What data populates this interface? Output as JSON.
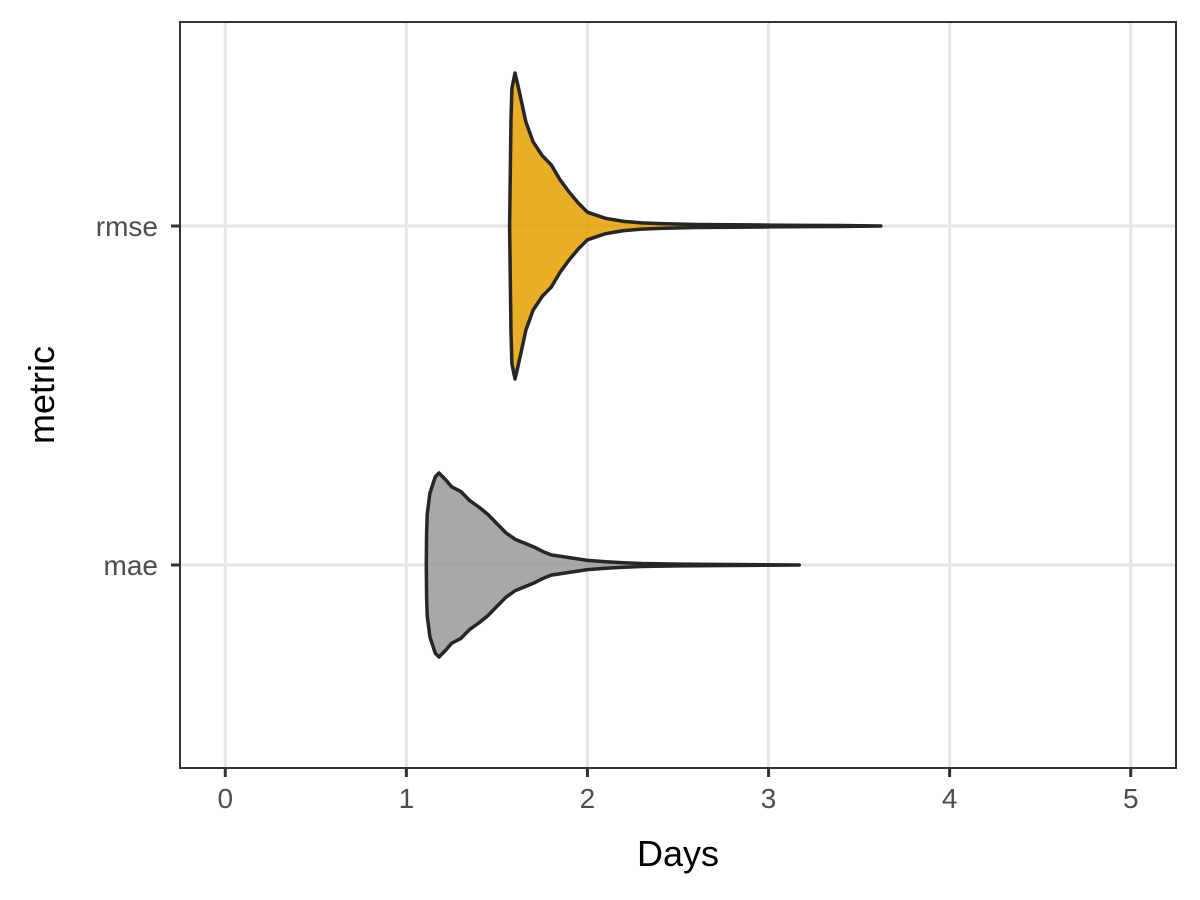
{
  "chart_data": {
    "type": "violin",
    "orientation": "horizontal",
    "xlabel": "Days",
    "ylabel": "metric",
    "xlim": [
      -0.25,
      5.25
    ],
    "x_ticks": [
      0,
      1,
      2,
      3,
      4,
      5
    ],
    "categories": [
      "mae",
      "rmse"
    ],
    "grid": true,
    "legend": "none",
    "series": [
      {
        "category": "rmse",
        "color": "#E69F00",
        "min": 1.57,
        "max": 3.62,
        "density_profile": [
          [
            1.57,
            0.0
          ],
          [
            1.575,
            0.45
          ],
          [
            1.578,
            0.7
          ],
          [
            1.583,
            0.9
          ],
          [
            1.6,
            1.0
          ],
          [
            1.62,
            0.9
          ],
          [
            1.66,
            0.68
          ],
          [
            1.7,
            0.55
          ],
          [
            1.75,
            0.46
          ],
          [
            1.8,
            0.4
          ],
          [
            1.85,
            0.3
          ],
          [
            1.9,
            0.22
          ],
          [
            1.95,
            0.15
          ],
          [
            2.0,
            0.09
          ],
          [
            2.05,
            0.07
          ],
          [
            2.1,
            0.05
          ],
          [
            2.15,
            0.04
          ],
          [
            2.2,
            0.03
          ],
          [
            2.3,
            0.02
          ],
          [
            2.4,
            0.016
          ],
          [
            2.6,
            0.01
          ],
          [
            2.8,
            0.008
          ],
          [
            3.0,
            0.006
          ],
          [
            3.2,
            0.004
          ],
          [
            3.4,
            0.003
          ],
          [
            3.62,
            0.0
          ]
        ]
      },
      {
        "category": "mae",
        "color": "#999999",
        "min": 1.11,
        "max": 3.17,
        "density_profile": [
          [
            1.11,
            0.0
          ],
          [
            1.112,
            0.35
          ],
          [
            1.115,
            0.55
          ],
          [
            1.13,
            0.78
          ],
          [
            1.16,
            0.96
          ],
          [
            1.18,
            1.0
          ],
          [
            1.22,
            0.92
          ],
          [
            1.25,
            0.85
          ],
          [
            1.3,
            0.8
          ],
          [
            1.35,
            0.7
          ],
          [
            1.4,
            0.63
          ],
          [
            1.45,
            0.55
          ],
          [
            1.5,
            0.45
          ],
          [
            1.55,
            0.35
          ],
          [
            1.6,
            0.28
          ],
          [
            1.7,
            0.2
          ],
          [
            1.75,
            0.15
          ],
          [
            1.8,
            0.11
          ],
          [
            1.9,
            0.08
          ],
          [
            2.0,
            0.05
          ],
          [
            2.1,
            0.035
          ],
          [
            2.2,
            0.025
          ],
          [
            2.3,
            0.016
          ],
          [
            2.5,
            0.01
          ],
          [
            2.7,
            0.006
          ],
          [
            2.9,
            0.004
          ],
          [
            3.17,
            0.0
          ]
        ]
      }
    ]
  }
}
